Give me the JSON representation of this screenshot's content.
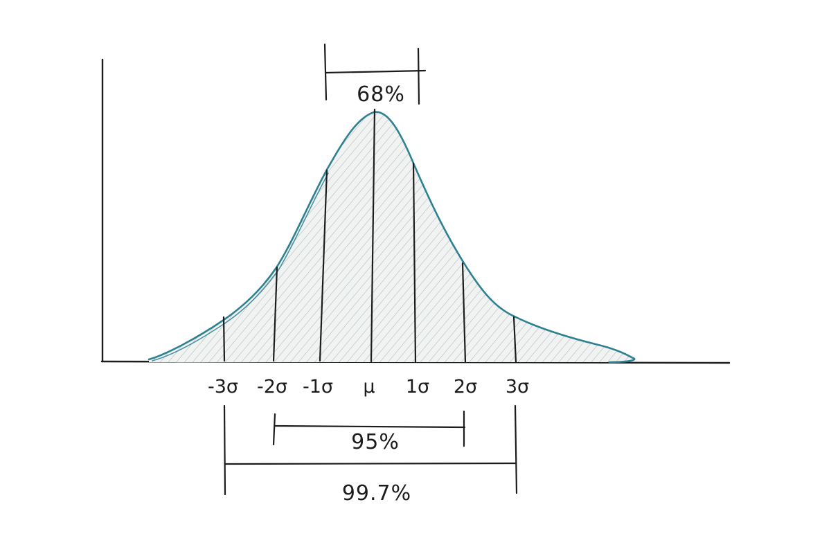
{
  "diagram": {
    "tick_labels": [
      "-3σ",
      "-2σ",
      "-1σ",
      "μ",
      "1σ",
      "2σ",
      "3σ"
    ],
    "intervals": {
      "one_sigma": "68%",
      "two_sigma": "95%",
      "three_sigma": "99.7%"
    },
    "colors": {
      "curve_stroke": "#2e8190",
      "hatch": "#9aa3a6",
      "ink": "#1c1c1c",
      "background": "#ffffff"
    }
  }
}
